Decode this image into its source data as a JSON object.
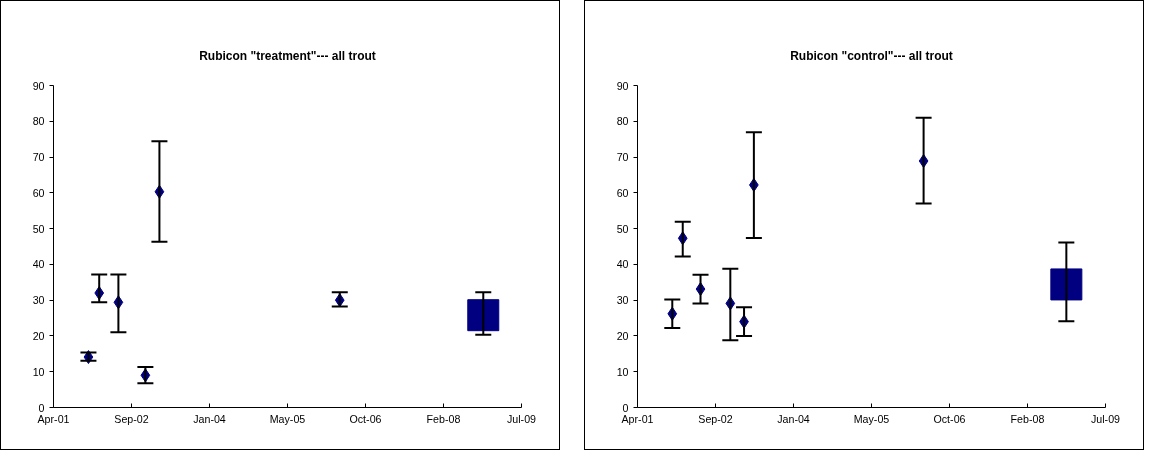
{
  "chart_data": [
    {
      "type": "scatter",
      "title": "Rubicon \"treatment\"--- all trout",
      "grid": false,
      "xlim": [
        "2001-04-19",
        "2009-07-06"
      ],
      "xticks": [
        {
          "value": "2001-04-19",
          "label": "Apr-01"
        },
        {
          "value": "2002-09-01",
          "label": "Sep-02"
        },
        {
          "value": "2004-01-14",
          "label": "Jan-04"
        },
        {
          "value": "2005-05-28",
          "label": "May-05"
        },
        {
          "value": "2006-10-10",
          "label": "Oct-06"
        },
        {
          "value": "2008-02-22",
          "label": "Feb-08"
        },
        {
          "value": "2009-07-06",
          "label": "Jul-09"
        }
      ],
      "ylim": [
        0,
        90
      ],
      "yticks": [
        0,
        10,
        20,
        30,
        40,
        50,
        60,
        70,
        80,
        90
      ],
      "series": [
        {
          "color": "#000080",
          "marker": "diamond",
          "x": [
            "2001-11-29",
            "2002-02-06",
            "2002-06-09",
            "2002-11-29",
            "2003-02-27",
            "2006-04-28"
          ],
          "values": [
            14.1,
            32,
            29.4,
            9,
            60.3,
            30
          ],
          "errors": [
            [
              13.1,
              15.4
            ],
            [
              29.4,
              37.2
            ],
            [
              21,
              37.2
            ],
            [
              6.8,
              11.3
            ],
            [
              46.3,
              74.4
            ],
            [
              28.2,
              32.2
            ]
          ]
        },
        {
          "color": "#000080",
          "marker": "square",
          "x": [
            "2008-11-03"
          ],
          "values": [
            25.8
          ],
          "errors": [
            [
              20.3,
              32.2
            ]
          ]
        }
      ]
    },
    {
      "type": "scatter",
      "title": "Rubicon \"control\"--- all trout",
      "grid": false,
      "xlim": [
        "2001-04-19",
        "2009-07-06"
      ],
      "xticks": [
        {
          "value": "2001-04-19",
          "label": "Apr-01"
        },
        {
          "value": "2002-09-01",
          "label": "Sep-02"
        },
        {
          "value": "2004-01-14",
          "label": "Jan-04"
        },
        {
          "value": "2005-05-28",
          "label": "May-05"
        },
        {
          "value": "2006-10-10",
          "label": "Oct-06"
        },
        {
          "value": "2008-02-22",
          "label": "Feb-08"
        },
        {
          "value": "2009-07-06",
          "label": "Jul-09"
        }
      ],
      "ylim": [
        0,
        90
      ],
      "yticks": [
        0,
        10,
        20,
        30,
        40,
        50,
        60,
        70,
        80,
        90
      ],
      "series": [
        {
          "color": "#000080",
          "marker": "diamond",
          "x": [
            "2001-11-28",
            "2002-02-03",
            "2002-05-28",
            "2002-12-05",
            "2003-03-03",
            "2003-05-05",
            "2006-04-27"
          ],
          "values": [
            26.2,
            47.3,
            33.1,
            29.1,
            24,
            62.2,
            68.9
          ],
          "errors": [
            [
              22.2,
              30.2
            ],
            [
              42.2,
              51.9
            ],
            [
              29.1,
              37.1
            ],
            [
              18.8,
              38.8
            ],
            [
              20,
              28
            ],
            [
              47.4,
              76.9
            ],
            [
              57,
              81
            ]
          ]
        },
        {
          "color": "#000080",
          "marker": "square",
          "x": [
            "2008-10-28"
          ],
          "values": [
            34.4
          ],
          "errors": [
            [
              24.1,
              46.1
            ]
          ]
        }
      ]
    }
  ]
}
